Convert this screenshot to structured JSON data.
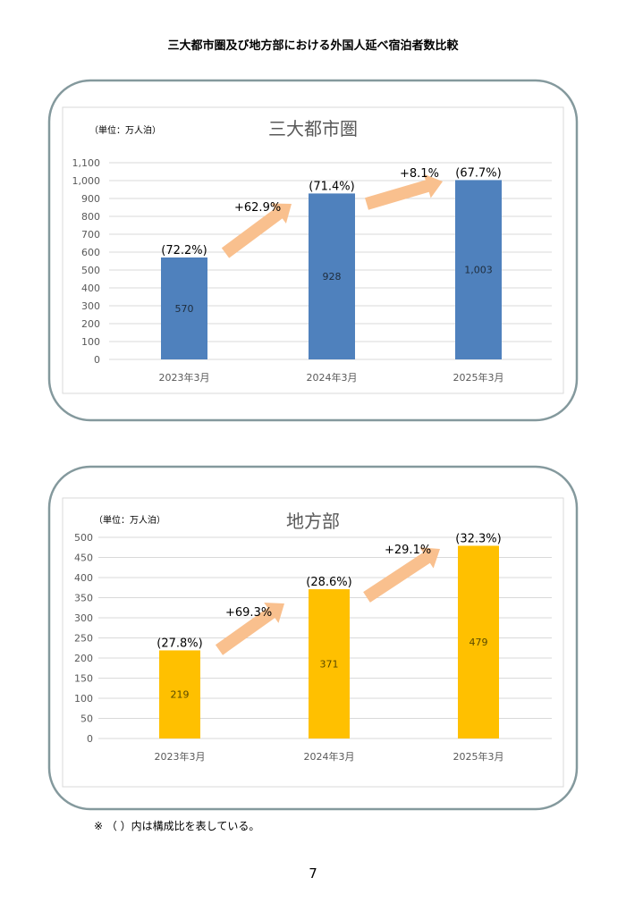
{
  "page_title": "三大都市圏及び地方部における外国人延べ宿泊者数比較",
  "note": "※ （ ）内は構成比を表している。",
  "page_number": "7",
  "chart_data": [
    {
      "type": "bar",
      "title": "三大都市圏",
      "unit_label": "（単位：万人泊）",
      "categories": [
        "2023年3月",
        "2024年3月",
        "2025年3月"
      ],
      "values": [
        570,
        928,
        1003
      ],
      "value_labels": [
        "570",
        "928",
        "1,003"
      ],
      "share_labels": [
        "(72.2%)",
        "(71.4%)",
        "(67.7%)"
      ],
      "growth_labels": [
        "+62.9%",
        "+8.1%"
      ],
      "ylim": [
        0,
        1100
      ],
      "yticks": [
        0,
        100,
        200,
        300,
        400,
        500,
        600,
        700,
        800,
        900,
        1000,
        1100
      ],
      "ytick_labels": [
        "0",
        "100",
        "200",
        "300",
        "400",
        "500",
        "600",
        "700",
        "800",
        "900",
        "1,000",
        "1,100"
      ],
      "grid": true,
      "bar_color": "#4f81bd",
      "arrow_color": "#f9c08e"
    },
    {
      "type": "bar",
      "title": "地方部",
      "unit_label": "（単位：万人泊）",
      "categories": [
        "2023年3月",
        "2024年3月",
        "2025年3月"
      ],
      "values": [
        219,
        371,
        479
      ],
      "value_labels": [
        "219",
        "371",
        "479"
      ],
      "share_labels": [
        "(27.8%)",
        "(28.6%)",
        "(32.3%)"
      ],
      "growth_labels": [
        "+69.3%",
        "+29.1%"
      ],
      "ylim": [
        0,
        500
      ],
      "yticks": [
        0,
        50,
        100,
        150,
        200,
        250,
        300,
        350,
        400,
        450,
        500
      ],
      "ytick_labels": [
        "0",
        "50",
        "100",
        "150",
        "200",
        "250",
        "300",
        "350",
        "400",
        "450",
        "500"
      ],
      "grid": true,
      "bar_color": "#ffc000",
      "arrow_color": "#f9c08e"
    }
  ]
}
